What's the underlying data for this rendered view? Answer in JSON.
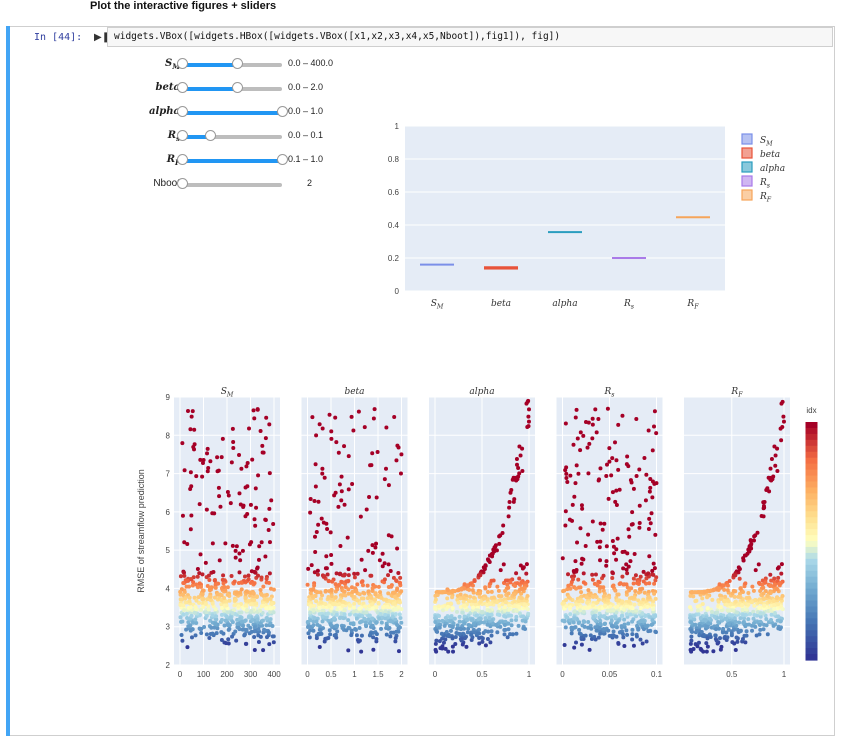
{
  "heading": "Plot the interactive figures + sliders",
  "cell": {
    "prompt": "In [44]:",
    "code": "widgets.VBox([widgets.HBox([widgets.VBox([x1,x2,x3,x4,x5,Nboot]),fig1]), fig])"
  },
  "sliders": [
    {
      "label": "S_M",
      "display": "Sₘ",
      "readout": "0.0 – 400.0",
      "low": 0.0,
      "high": 0.55,
      "plain": false
    },
    {
      "label": "beta",
      "display": "beta",
      "readout": "0.0 – 2.0",
      "low": 0.0,
      "high": 0.55,
      "plain": false
    },
    {
      "label": "alpha",
      "display": "alpha",
      "readout": "0.0 – 1.0",
      "low": 0.0,
      "high": 1.0,
      "plain": false
    },
    {
      "label": "R_s",
      "display": "Rₛ",
      "readout": "0.0 – 0.1",
      "low": 0.0,
      "high": 0.28,
      "plain": false
    },
    {
      "label": "R_F",
      "display": "R_F",
      "readout": "0.1 – 1.0",
      "low": 0.0,
      "high": 1.0,
      "plain": false
    },
    {
      "label": "Nboot",
      "display": "Nboot",
      "readout": "2",
      "low": 0.0,
      "high": 0.0,
      "plain": true
    }
  ],
  "chart_data": [
    {
      "type": "bar",
      "categories": [
        "S_M",
        "beta",
        "alpha",
        "R_s",
        "R_F"
      ],
      "values": [
        0.16,
        0.14,
        0.36,
        0.2,
        0.45
      ],
      "errors": [
        0.006,
        0.01,
        0.003,
        0.006,
        0.003
      ],
      "ylim": [
        0,
        1
      ],
      "yticks": [
        "0",
        "0.2",
        "0.4",
        "0.6",
        "0.8",
        "1"
      ],
      "colors": [
        "#7b8fe8",
        "#e8533a",
        "#2a9dbf",
        "#a97ae8",
        "#f6a55a"
      ],
      "legend": [
        "S_M",
        "beta",
        "alpha",
        "R_s",
        "R_F"
      ],
      "legend_position": "top-right"
    },
    {
      "type": "scatter",
      "ylabel": "RMSE of streamflow prediction",
      "ylim": [
        2,
        9
      ],
      "yticks": [
        "2",
        "3",
        "4",
        "5",
        "6",
        "7",
        "8",
        "9"
      ],
      "colorbar_title": "idx",
      "panels": [
        {
          "title": "S_M",
          "xlim": [
            0,
            400
          ],
          "xticks": [
            "0",
            "100",
            "200",
            "300",
            "400"
          ],
          "trend": "flat"
        },
        {
          "title": "beta",
          "xlim": [
            0,
            2
          ],
          "xticks": [
            "0",
            "0.5",
            "1",
            "1.5",
            "2"
          ],
          "trend": "flat"
        },
        {
          "title": "alpha",
          "xlim": [
            0,
            1
          ],
          "xticks": [
            "0",
            "0.5",
            "1"
          ],
          "trend": "rising"
        },
        {
          "title": "R_s",
          "xlim": [
            0,
            0.1
          ],
          "xticks": [
            "0",
            "0.05",
            "0.1"
          ],
          "trend": "flat"
        },
        {
          "title": "R_F",
          "xlim": [
            0.1,
            1
          ],
          "xticks": [
            "0.5",
            "1"
          ],
          "trend": "rising"
        }
      ]
    }
  ]
}
